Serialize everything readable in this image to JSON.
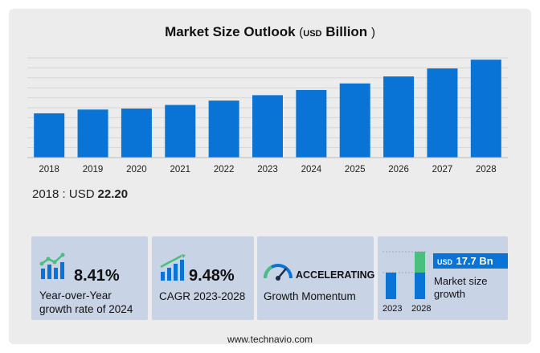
{
  "title": {
    "main": "Market Size Outlook",
    "paren_open": "(",
    "unit_small": "USD",
    "unit": "Billion",
    "paren_close": ")"
  },
  "chart_data": {
    "type": "bar",
    "categories": [
      "2018",
      "2019",
      "2020",
      "2021",
      "2022",
      "2023",
      "2024",
      "2025",
      "2026",
      "2027",
      "2028"
    ],
    "values": [
      22.2,
      24.1,
      24.6,
      26.4,
      28.6,
      31.3,
      33.9,
      37.2,
      40.7,
      44.7,
      49.1
    ],
    "ylim": [
      0,
      50
    ],
    "bar_color": "#0a74d6",
    "grid": true
  },
  "base_stat": {
    "label": "2018 : USD",
    "value": "22.20"
  },
  "cards": {
    "yoy": {
      "value": "8.41%",
      "line1": "Year-over-Year",
      "line2": "growth rate of 2024"
    },
    "cagr": {
      "value": "9.48%",
      "line1": "CAGR 2023-2028"
    },
    "momentum": {
      "value": "ACCELERATING",
      "line1": "Growth Momentum"
    },
    "growth": {
      "badge_small": "USD",
      "badge_value": "17.7 Bn",
      "line1": "Market size",
      "line2": "growth",
      "year_a": "2023",
      "year_b": "2028"
    }
  },
  "colors": {
    "blue": "#0a74d6",
    "green": "#4bbf7e",
    "card": "#c9d3e6"
  },
  "footer": "www.technavio.com"
}
